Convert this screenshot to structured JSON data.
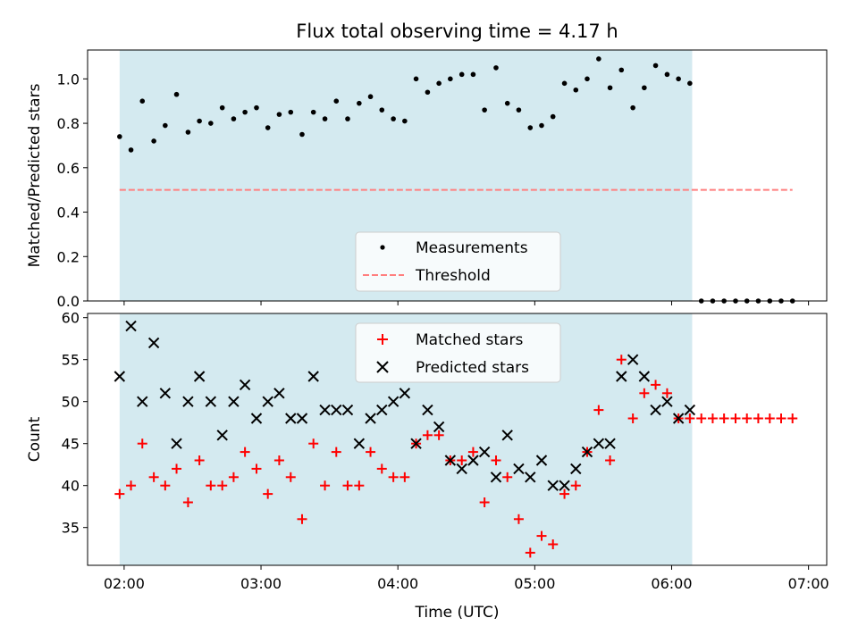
{
  "chart_data": [
    {
      "type": "scatter",
      "title": "Flux total observing time = 4.17 h",
      "xlabel": "",
      "ylabel": "Matched/Predicted stars",
      "ylim": [
        0,
        1.13
      ],
      "yticks": [
        "0.0",
        "0.2",
        "0.4",
        "0.6",
        "0.8",
        "1.0"
      ],
      "xlim_hours": [
        1.733,
        7.133
      ],
      "shaded_span_hours": [
        1.967,
        6.15
      ],
      "shade_color": "#d4eaf0",
      "legend_position": "bottom-center",
      "series": [
        {
          "name": "Measurements",
          "marker": "dot",
          "color": "#000000",
          "x_hours": [
            1.967,
            2.05,
            2.133,
            2.217,
            2.3,
            2.383,
            2.467,
            2.55,
            2.633,
            2.717,
            2.8,
            2.883,
            2.967,
            3.05,
            3.133,
            3.217,
            3.3,
            3.383,
            3.467,
            3.55,
            3.633,
            3.717,
            3.8,
            3.883,
            3.967,
            4.05,
            4.133,
            4.217,
            4.3,
            4.383,
            4.467,
            4.55,
            4.633,
            4.717,
            4.8,
            4.883,
            4.967,
            5.05,
            5.133,
            5.217,
            5.3,
            5.383,
            5.467,
            5.55,
            5.633,
            5.717,
            5.8,
            5.883,
            5.967,
            6.05,
            6.133,
            6.217,
            6.3,
            6.383,
            6.467,
            6.55,
            6.633,
            6.717,
            6.8,
            6.883
          ],
          "y": [
            0.74,
            0.68,
            0.9,
            0.72,
            0.79,
            0.93,
            0.76,
            0.81,
            0.8,
            0.87,
            0.82,
            0.85,
            0.87,
            0.78,
            0.84,
            0.85,
            0.75,
            0.85,
            0.82,
            0.9,
            0.82,
            0.89,
            0.92,
            0.86,
            0.82,
            0.81,
            1.0,
            0.94,
            0.98,
            1.0,
            1.02,
            1.02,
            0.86,
            1.05,
            0.89,
            0.86,
            0.78,
            0.79,
            0.83,
            0.98,
            0.95,
            1.0,
            1.09,
            0.96,
            1.04,
            0.87,
            0.96,
            1.06,
            1.02,
            1.0,
            0.98,
            0.0,
            0.0,
            0.0,
            0.0,
            0.0,
            0.0,
            0.0,
            0.0,
            0.0
          ]
        },
        {
          "name": "Threshold",
          "marker": "dashed-line",
          "color": "#ff7f7f",
          "x_hours": [
            1.967,
            6.883
          ],
          "y": [
            0.5,
            0.5
          ]
        }
      ]
    },
    {
      "type": "scatter",
      "title": "",
      "xlabel": "Time (UTC)",
      "ylabel": "Count",
      "ylim": [
        30.5,
        60.5
      ],
      "yticks": [
        "35",
        "40",
        "45",
        "50",
        "55",
        "60"
      ],
      "xlim_hours": [
        1.733,
        7.133
      ],
      "xticks": [
        "02:00",
        "03:00",
        "04:00",
        "05:00",
        "06:00",
        "07:00"
      ],
      "shaded_span_hours": [
        1.967,
        6.15
      ],
      "shade_color": "#d4eaf0",
      "legend_position": "top-center",
      "series": [
        {
          "name": "Matched stars",
          "marker": "plus",
          "color": "#ff0000",
          "x_hours": [
            1.967,
            2.05,
            2.133,
            2.217,
            2.3,
            2.383,
            2.467,
            2.55,
            2.633,
            2.717,
            2.8,
            2.883,
            2.967,
            3.05,
            3.133,
            3.217,
            3.3,
            3.383,
            3.467,
            3.55,
            3.633,
            3.717,
            3.8,
            3.883,
            3.967,
            4.05,
            4.133,
            4.217,
            4.3,
            4.383,
            4.467,
            4.55,
            4.633,
            4.717,
            4.8,
            4.883,
            4.967,
            5.05,
            5.133,
            5.217,
            5.3,
            5.383,
            5.467,
            5.55,
            5.633,
            5.717,
            5.8,
            5.883,
            5.967,
            6.05,
            6.133,
            6.217,
            6.3,
            6.383,
            6.467,
            6.55,
            6.633,
            6.717,
            6.8,
            6.883
          ],
          "y": [
            39,
            40,
            45,
            41,
            40,
            42,
            38,
            43,
            40,
            40,
            41,
            44,
            42,
            39,
            43,
            41,
            36,
            45,
            40,
            44,
            40,
            40,
            44,
            42,
            41,
            41,
            45,
            46,
            46,
            43,
            43,
            44,
            38,
            43,
            41,
            36,
            32,
            34,
            33,
            39,
            40,
            44,
            49,
            43,
            55,
            48,
            51,
            52,
            51,
            48,
            48,
            48,
            48,
            48,
            48,
            48,
            48,
            48,
            48,
            48
          ]
        },
        {
          "name": "Predicted stars",
          "marker": "x",
          "color": "#000000",
          "x_hours": [
            1.967,
            2.05,
            2.133,
            2.217,
            2.3,
            2.383,
            2.467,
            2.55,
            2.633,
            2.717,
            2.8,
            2.883,
            2.967,
            3.05,
            3.133,
            3.217,
            3.3,
            3.383,
            3.467,
            3.55,
            3.633,
            3.717,
            3.8,
            3.883,
            3.967,
            4.05,
            4.133,
            4.217,
            4.3,
            4.383,
            4.467,
            4.55,
            4.633,
            4.717,
            4.8,
            4.883,
            4.967,
            5.05,
            5.133,
            5.217,
            5.3,
            5.383,
            5.467,
            5.55,
            5.633,
            5.717,
            5.8,
            5.883,
            5.967,
            6.05,
            6.133
          ],
          "y": [
            53,
            59,
            50,
            57,
            51,
            45,
            50,
            53,
            50,
            46,
            50,
            52,
            48,
            50,
            51,
            48,
            48,
            53,
            49,
            49,
            49,
            45,
            48,
            49,
            50,
            51,
            45,
            49,
            47,
            43,
            42,
            43,
            44,
            41,
            46,
            42,
            41,
            43,
            40,
            40,
            42,
            44,
            45,
            45,
            53,
            55,
            53,
            49,
            50,
            48,
            49
          ]
        }
      ]
    }
  ]
}
